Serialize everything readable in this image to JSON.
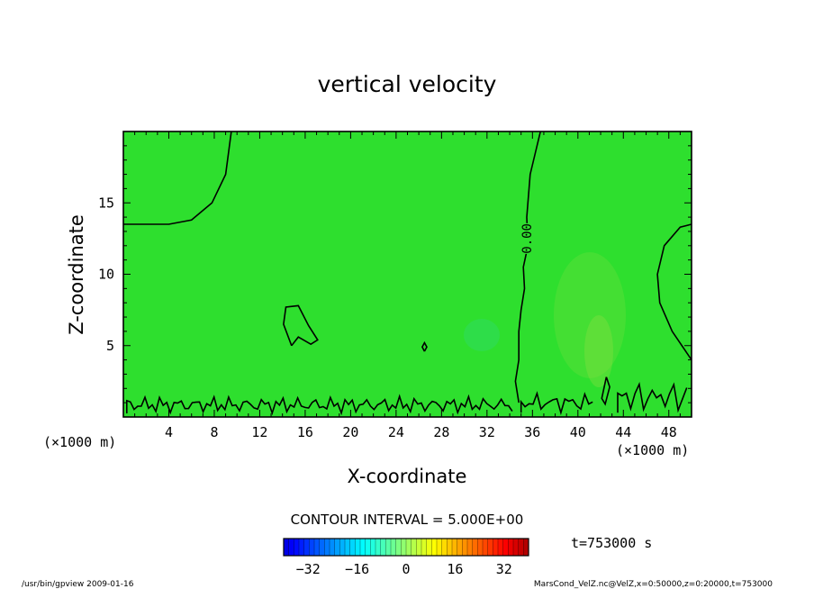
{
  "chart_data": {
    "type": "heatmap",
    "subtype": "contour",
    "title": "vertical velocity",
    "xlabel": "X-coordinate",
    "ylabel": "Z-coordinate",
    "x_unit_label": "(×1000 m)",
    "y_unit_label": "(×1000 m)",
    "xlim": [
      0,
      50
    ],
    "ylim": [
      0,
      20
    ],
    "x_ticks": [
      4,
      8,
      12,
      16,
      20,
      24,
      28,
      32,
      36,
      40,
      44,
      48
    ],
    "y_ticks": [
      5,
      10,
      15
    ],
    "contour_interval_text": "CONTOUR INTERVAL = 5.000E+00",
    "contour_label": "0.00",
    "field_color": "#2edf2e",
    "colorbar": {
      "range": [
        -40,
        40
      ],
      "ticks": [
        -32,
        -16,
        0,
        16,
        32
      ]
    },
    "time_label": "t=753000 s",
    "zero_contours": [
      {
        "name": "upper-left",
        "points": [
          [
            0,
            13.5
          ],
          [
            4,
            13.5
          ],
          [
            6,
            13.8
          ],
          [
            7.8,
            15
          ],
          [
            9,
            17
          ],
          [
            9.5,
            20
          ]
        ]
      },
      {
        "name": "main-vertical",
        "points": [
          [
            36.7,
            20
          ],
          [
            35.8,
            17
          ],
          [
            35.5,
            14
          ],
          [
            35.6,
            12
          ],
          [
            35.2,
            10.5
          ],
          [
            35.3,
            9
          ],
          [
            35,
            7.5
          ],
          [
            34.8,
            6
          ],
          [
            34.8,
            4
          ],
          [
            34.5,
            2.5
          ],
          [
            34.8,
            1
          ]
        ]
      },
      {
        "name": "right-boundary",
        "points": [
          [
            50,
            13.5
          ],
          [
            49,
            13.3
          ],
          [
            47.6,
            12
          ],
          [
            47,
            10
          ],
          [
            47.2,
            8
          ],
          [
            48.3,
            6
          ],
          [
            50,
            4
          ]
        ]
      },
      {
        "name": "blob-16",
        "points": [
          [
            14.8,
            5
          ],
          [
            14.1,
            6.5
          ],
          [
            14.3,
            7.7
          ],
          [
            15.4,
            7.8
          ],
          [
            16.3,
            6.4
          ],
          [
            17.1,
            5.4
          ],
          [
            16.5,
            5.1
          ],
          [
            15.4,
            5.6
          ],
          [
            14.8,
            5
          ]
        ]
      },
      {
        "name": "small-26",
        "points": [
          [
            26.5,
            4.6
          ],
          [
            26.3,
            4.9
          ],
          [
            26.5,
            5.2
          ],
          [
            26.7,
            4.9
          ],
          [
            26.5,
            4.6
          ]
        ]
      },
      {
        "name": "sliver-43",
        "points": [
          [
            42.5,
            2.8
          ],
          [
            42.1,
            1.3
          ],
          [
            42.4,
            0.9
          ],
          [
            42.8,
            2.1
          ],
          [
            42.5,
            2.8
          ]
        ]
      }
    ]
  },
  "footer": {
    "left_text": "/usr/bin/gpview  2009-01-16",
    "right_text": "MarsCond_VelZ.nc@VelZ,x=0:50000,z=0:20000,t=753000"
  }
}
